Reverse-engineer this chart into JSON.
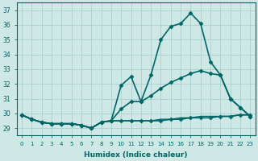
{
  "xlabel": "Humidex (Indice chaleur)",
  "ylabel": "",
  "bg_color": "#cde8e5",
  "grid_color": "#aacfcc",
  "line_color": "#006666",
  "xlim": [
    -0.5,
    23.5
  ],
  "ylim": [
    28.5,
    37.5
  ],
  "yticks": [
    29,
    30,
    31,
    32,
    33,
    34,
    35,
    36,
    37
  ],
  "xticks": [
    0,
    1,
    2,
    3,
    4,
    5,
    6,
    7,
    8,
    9,
    10,
    11,
    12,
    13,
    14,
    15,
    16,
    17,
    18,
    19,
    20,
    21,
    22,
    23
  ],
  "series": [
    {
      "x": [
        0,
        1,
        2,
        3,
        4,
        5,
        6,
        7,
        8,
        9,
        10,
        11,
        12,
        13,
        14,
        15,
        16,
        17,
        18,
        19,
        20,
        21,
        22,
        23
      ],
      "y": [
        29.9,
        29.6,
        29.4,
        29.3,
        29.3,
        29.3,
        29.2,
        29.0,
        29.4,
        29.5,
        31.9,
        32.5,
        30.8,
        32.6,
        35.0,
        35.9,
        36.1,
        36.8,
        36.1,
        33.5,
        32.6,
        31.0,
        30.4,
        29.8
      ],
      "marker": "D",
      "markersize": 2.5,
      "linewidth": 1.2
    },
    {
      "x": [
        0,
        1,
        2,
        3,
        4,
        5,
        6,
        7,
        8,
        9,
        10,
        11,
        12,
        13,
        14,
        15,
        16,
        17,
        18,
        19,
        20,
        21,
        22,
        23
      ],
      "y": [
        29.9,
        29.6,
        29.4,
        29.3,
        29.3,
        29.3,
        29.2,
        29.0,
        29.4,
        29.5,
        29.5,
        29.5,
        29.5,
        29.5,
        29.5,
        29.6,
        29.6,
        29.7,
        29.7,
        29.7,
        29.8,
        29.8,
        29.9,
        29.9
      ],
      "marker": "D",
      "markersize": 2.5,
      "linewidth": 1.2
    },
    {
      "x": [
        0,
        1,
        2,
        3,
        4,
        5,
        6,
        7,
        8,
        9,
        10,
        11,
        12,
        13,
        14,
        15,
        16,
        17,
        18,
        19,
        20,
        21,
        22,
        23
      ],
      "y": [
        29.9,
        29.6,
        29.4,
        29.3,
        29.3,
        29.3,
        29.2,
        29.0,
        29.4,
        29.5,
        30.3,
        30.8,
        30.8,
        31.2,
        31.7,
        32.1,
        32.4,
        32.7,
        32.9,
        32.7,
        32.6,
        31.0,
        30.4,
        29.8
      ],
      "marker": "D",
      "markersize": 2.5,
      "linewidth": 1.2
    },
    {
      "x": [
        0,
        1,
        2,
        3,
        4,
        5,
        6,
        7,
        8,
        9,
        10,
        11,
        12,
        13,
        14,
        15,
        16,
        17,
        18,
        19,
        20,
        21,
        22,
        23
      ],
      "y": [
        29.9,
        29.6,
        29.4,
        29.3,
        29.3,
        29.3,
        29.2,
        29.0,
        29.4,
        29.5,
        29.5,
        29.5,
        29.5,
        29.5,
        29.6,
        29.6,
        29.7,
        29.7,
        29.8,
        29.8,
        29.8,
        29.8,
        29.9,
        29.9
      ],
      "marker": null,
      "markersize": 0,
      "linewidth": 1.0
    }
  ]
}
